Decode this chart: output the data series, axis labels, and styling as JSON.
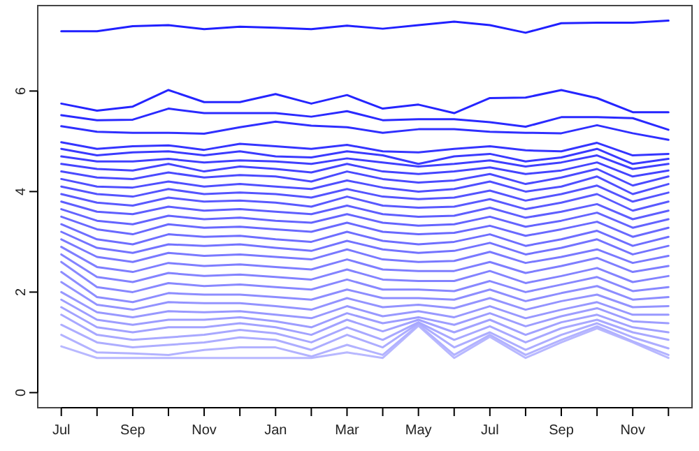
{
  "chart_data": {
    "type": "line",
    "categories": [
      "Jul",
      null,
      "Sep",
      null,
      "Nov",
      null,
      "Jan",
      null,
      "Mar",
      null,
      "May",
      null,
      "Jul",
      null,
      "Sep",
      null,
      "Nov",
      null
    ],
    "ylim": [
      -0.3,
      7.7
    ],
    "yticks": [
      0,
      2,
      4,
      6
    ],
    "series": [
      {
        "color": "#2020ff",
        "values": [
          7.19,
          7.19,
          7.29,
          7.31,
          7.23,
          7.28,
          7.26,
          7.23,
          7.3,
          7.24,
          7.31,
          7.38,
          7.31,
          7.16,
          7.35,
          7.36,
          7.36,
          7.4
        ]
      },
      {
        "color": "#2525ff",
        "values": [
          5.75,
          5.61,
          5.69,
          6.02,
          5.78,
          5.78,
          5.94,
          5.75,
          5.92,
          5.65,
          5.73,
          5.56,
          5.86,
          5.87,
          6.02,
          5.86,
          5.58,
          5.58
        ]
      },
      {
        "color": "#2a2aff",
        "values": [
          5.52,
          5.42,
          5.43,
          5.65,
          5.56,
          5.56,
          5.56,
          5.49,
          5.6,
          5.42,
          5.44,
          5.44,
          5.38,
          5.29,
          5.48,
          5.48,
          5.46,
          5.23
        ]
      },
      {
        "color": "#2f2fff",
        "values": [
          5.3,
          5.19,
          5.17,
          5.17,
          5.15,
          5.28,
          5.39,
          5.31,
          5.28,
          5.17,
          5.24,
          5.24,
          5.19,
          5.17,
          5.16,
          5.32,
          5.16,
          5.03
        ]
      },
      {
        "color": "#3535ff",
        "values": [
          4.98,
          4.85,
          4.9,
          4.92,
          4.83,
          4.95,
          4.9,
          4.85,
          4.93,
          4.8,
          4.78,
          4.85,
          4.9,
          4.82,
          4.8,
          4.97,
          4.72,
          4.75
        ]
      },
      {
        "color": "#3a3aff",
        "values": [
          4.85,
          4.72,
          4.78,
          4.8,
          4.72,
          4.8,
          4.7,
          4.68,
          4.8,
          4.72,
          4.55,
          4.7,
          4.75,
          4.6,
          4.68,
          4.85,
          4.55,
          4.65
        ]
      },
      {
        "color": "#3f3fff",
        "values": [
          4.7,
          4.6,
          4.6,
          4.65,
          4.58,
          4.62,
          4.6,
          4.55,
          4.66,
          4.58,
          4.5,
          4.55,
          4.62,
          4.5,
          4.58,
          4.72,
          4.45,
          4.55
        ]
      },
      {
        "color": "#4444ff",
        "values": [
          4.55,
          4.45,
          4.42,
          4.55,
          4.4,
          4.5,
          4.45,
          4.38,
          4.55,
          4.4,
          4.35,
          4.4,
          4.48,
          4.35,
          4.42,
          4.58,
          4.3,
          4.42
        ]
      },
      {
        "color": "#4a4aff",
        "values": [
          4.4,
          4.28,
          4.25,
          4.38,
          4.28,
          4.33,
          4.3,
          4.2,
          4.4,
          4.25,
          4.18,
          4.22,
          4.35,
          4.15,
          4.28,
          4.45,
          4.12,
          4.3
        ]
      },
      {
        "color": "#4f4fff",
        "values": [
          4.25,
          4.1,
          4.08,
          4.2,
          4.1,
          4.15,
          4.1,
          4.05,
          4.22,
          4.08,
          4.0,
          4.05,
          4.2,
          4.0,
          4.1,
          4.3,
          3.95,
          4.15
        ]
      },
      {
        "color": "#5454ff",
        "values": [
          4.1,
          3.95,
          3.9,
          4.05,
          3.95,
          3.98,
          3.95,
          3.88,
          4.05,
          3.9,
          3.85,
          3.88,
          4.02,
          3.82,
          3.95,
          4.12,
          3.8,
          3.98
        ]
      },
      {
        "color": "#5959ff",
        "values": [
          3.95,
          3.78,
          3.72,
          3.88,
          3.8,
          3.82,
          3.78,
          3.7,
          3.9,
          3.72,
          3.68,
          3.7,
          3.85,
          3.65,
          3.78,
          3.95,
          3.62,
          3.8
        ]
      },
      {
        "color": "#5e5eff",
        "values": [
          3.8,
          3.6,
          3.55,
          3.7,
          3.62,
          3.65,
          3.6,
          3.55,
          3.72,
          3.55,
          3.5,
          3.52,
          3.68,
          3.48,
          3.6,
          3.75,
          3.45,
          3.62
        ]
      },
      {
        "color": "#6464ff",
        "values": [
          3.65,
          3.42,
          3.35,
          3.52,
          3.45,
          3.48,
          3.42,
          3.38,
          3.55,
          3.38,
          3.32,
          3.35,
          3.5,
          3.3,
          3.42,
          3.58,
          3.28,
          3.45
        ]
      },
      {
        "color": "#6969ff",
        "values": [
          3.5,
          3.25,
          3.15,
          3.35,
          3.28,
          3.3,
          3.25,
          3.2,
          3.38,
          3.2,
          3.15,
          3.18,
          3.32,
          3.12,
          3.25,
          3.4,
          3.1,
          3.28
        ]
      },
      {
        "color": "#6e6eff",
        "values": [
          3.35,
          3.05,
          2.95,
          3.15,
          3.1,
          3.12,
          3.05,
          3.0,
          3.2,
          3.02,
          2.95,
          3.0,
          3.15,
          2.92,
          3.05,
          3.22,
          2.92,
          3.1
        ]
      },
      {
        "color": "#7373ff",
        "values": [
          3.2,
          2.88,
          2.78,
          2.95,
          2.92,
          2.95,
          2.88,
          2.82,
          3.02,
          2.85,
          2.78,
          2.82,
          2.98,
          2.75,
          2.88,
          3.05,
          2.75,
          2.92
        ]
      },
      {
        "color": "#7979ff",
        "values": [
          3.05,
          2.7,
          2.6,
          2.78,
          2.72,
          2.75,
          2.7,
          2.65,
          2.85,
          2.65,
          2.6,
          2.62,
          2.8,
          2.58,
          2.7,
          2.85,
          2.58,
          2.72
        ]
      },
      {
        "color": "#7e7eff",
        "values": [
          2.9,
          2.5,
          2.4,
          2.58,
          2.52,
          2.55,
          2.5,
          2.45,
          2.65,
          2.45,
          2.42,
          2.42,
          2.6,
          2.38,
          2.52,
          2.68,
          2.4,
          2.52
        ]
      },
      {
        "color": "#8383ff",
        "values": [
          2.75,
          2.3,
          2.2,
          2.38,
          2.32,
          2.35,
          2.3,
          2.25,
          2.45,
          2.25,
          2.22,
          2.22,
          2.42,
          2.18,
          2.32,
          2.48,
          2.2,
          2.32
        ]
      },
      {
        "color": "#8888ff",
        "values": [
          2.6,
          2.1,
          2.0,
          2.18,
          2.12,
          2.15,
          2.1,
          2.05,
          2.25,
          2.05,
          2.05,
          2.02,
          2.22,
          2.0,
          2.15,
          2.3,
          2.02,
          2.1
        ]
      },
      {
        "color": "#8d8dff",
        "values": [
          2.4,
          1.9,
          1.8,
          1.98,
          1.95,
          1.95,
          1.9,
          1.85,
          2.05,
          1.88,
          1.88,
          1.85,
          2.05,
          1.82,
          1.98,
          2.12,
          1.85,
          1.9
        ]
      },
      {
        "color": "#9393ff",
        "values": [
          2.2,
          1.75,
          1.65,
          1.8,
          1.78,
          1.78,
          1.72,
          1.65,
          1.88,
          1.7,
          1.75,
          1.68,
          1.88,
          1.65,
          1.82,
          1.95,
          1.7,
          1.72
        ]
      },
      {
        "color": "#9898ff",
        "values": [
          2.0,
          1.6,
          1.5,
          1.62,
          1.6,
          1.62,
          1.55,
          1.48,
          1.72,
          1.52,
          1.62,
          1.5,
          1.72,
          1.48,
          1.65,
          1.8,
          1.55,
          1.55
        ]
      },
      {
        "color": "#9d9dff",
        "values": [
          1.85,
          1.45,
          1.35,
          1.45,
          1.45,
          1.5,
          1.42,
          1.3,
          1.58,
          1.38,
          1.5,
          1.35,
          1.58,
          1.32,
          1.52,
          1.68,
          1.42,
          1.38
        ]
      },
      {
        "color": "#a2a2ff",
        "values": [
          1.7,
          1.3,
          1.2,
          1.3,
          1.3,
          1.38,
          1.3,
          1.15,
          1.45,
          1.22,
          1.45,
          1.2,
          1.45,
          1.15,
          1.4,
          1.55,
          1.3,
          1.2
        ]
      },
      {
        "color": "#a8a8ff",
        "values": [
          1.55,
          1.15,
          1.05,
          1.1,
          1.15,
          1.25,
          1.18,
          1.0,
          1.3,
          1.05,
          1.4,
          1.05,
          1.32,
          1.0,
          1.28,
          1.45,
          1.2,
          1.05
        ]
      },
      {
        "color": "#adadff",
        "values": [
          1.35,
          1.0,
          0.9,
          0.95,
          1.0,
          1.1,
          1.05,
          0.85,
          1.15,
          0.9,
          1.38,
          0.9,
          1.2,
          0.85,
          1.15,
          1.38,
          1.1,
          0.88
        ]
      },
      {
        "color": "#b2b2ff",
        "values": [
          1.15,
          0.8,
          0.78,
          0.75,
          0.85,
          0.9,
          0.9,
          0.72,
          0.95,
          0.75,
          1.35,
          0.75,
          1.15,
          0.75,
          1.05,
          1.32,
          1.02,
          0.75
        ]
      },
      {
        "color": "#b8b8ff",
        "values": [
          0.92,
          0.69,
          0.69,
          0.69,
          0.69,
          0.69,
          0.69,
          0.69,
          0.8,
          0.69,
          1.33,
          0.69,
          1.11,
          0.69,
          1.0,
          1.28,
          1.0,
          0.69
        ]
      }
    ]
  }
}
